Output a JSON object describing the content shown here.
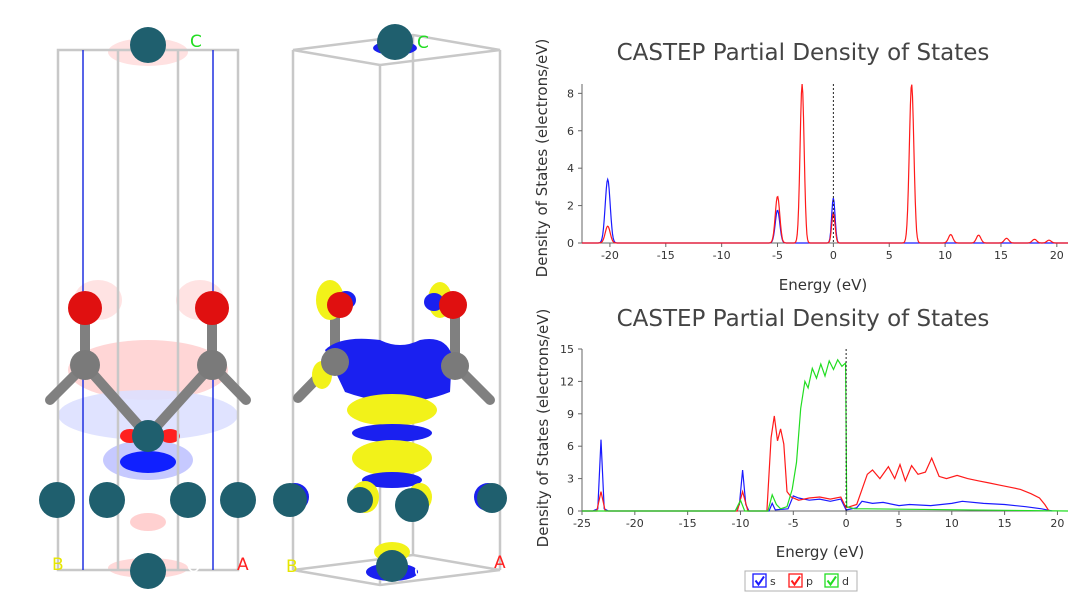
{
  "colors": {
    "s": "#1a1aff",
    "p": "#ff1a1a",
    "d": "#22dd22",
    "atom_metal": "#1f5f6e",
    "atom_c": "#808080",
    "atom_o": "#e01010",
    "cell_edge": "#c0c0c0",
    "charge_pos": "#1020ff",
    "charge_neg": "#ff2020",
    "charge_yellow": "#f2f219"
  },
  "structures": [
    {
      "axis_labels": {
        "a": "A",
        "b": "B",
        "c": "C",
        "center": "O"
      }
    },
    {
      "axis_labels": {
        "a": "A",
        "b": "B",
        "c": "C",
        "center": "O"
      }
    }
  ],
  "legend": {
    "items": [
      {
        "key": "s",
        "label": "s"
      },
      {
        "key": "p",
        "label": "p"
      },
      {
        "key": "d",
        "label": "d"
      }
    ]
  },
  "chart_data": [
    {
      "type": "line",
      "title": "CASTEP Partial  Density of States",
      "xlabel": "Energy (eV)",
      "ylabel": "Density of States (electrons/eV)",
      "xlim": [
        -22.5,
        21
      ],
      "ylim": [
        0,
        8.5
      ],
      "xticks": [
        -20,
        -15,
        -10,
        -5,
        0,
        5,
        10,
        15,
        20
      ],
      "yticks": [
        0,
        2,
        4,
        6,
        8
      ],
      "fermi_level": 0,
      "series": [
        {
          "name": "s",
          "color": "#1a1aff",
          "peaks": [
            [
              -20.2,
              3.4,
              0.22
            ],
            [
              -5.0,
              1.75,
              0.2
            ],
            [
              0.0,
              2.4,
              0.15
            ]
          ]
        },
        {
          "name": "p",
          "color": "#ff1a1a",
          "peaks": [
            [
              -20.2,
              0.9,
              0.22
            ],
            [
              -5.0,
              2.5,
              0.2
            ],
            [
              -2.8,
              8.5,
              0.18
            ],
            [
              0.0,
              1.6,
              0.15
            ],
            [
              7.0,
              8.5,
              0.2
            ],
            [
              10.5,
              0.45,
              0.2
            ],
            [
              13.0,
              0.42,
              0.2
            ],
            [
              15.5,
              0.25,
              0.2
            ],
            [
              18.0,
              0.2,
              0.2
            ],
            [
              19.3,
              0.15,
              0.2
            ]
          ]
        }
      ]
    },
    {
      "type": "line",
      "title": "CASTEP Partial  Density of States",
      "xlabel": "Energy (eV)",
      "ylabel": "Density of States (electrons/eV)",
      "xlim": [
        -25,
        21
      ],
      "ylim": [
        0,
        15
      ],
      "xticks": [
        -25,
        -20,
        -15,
        -10,
        -5,
        0,
        5,
        10,
        15,
        20
      ],
      "yticks": [
        0,
        3,
        6,
        9,
        12,
        15
      ],
      "fermi_level": 0,
      "series": [
        {
          "name": "s",
          "color": "#1a1aff",
          "points": [
            [
              -25,
              0
            ],
            [
              -24,
              0
            ],
            [
              -23.5,
              0.2
            ],
            [
              -23.2,
              6.6
            ],
            [
              -22.9,
              0.2
            ],
            [
              -22.5,
              0
            ],
            [
              -10.5,
              0
            ],
            [
              -10.1,
              0.6
            ],
            [
              -9.8,
              3.8
            ],
            [
              -9.5,
              0.6
            ],
            [
              -9.2,
              0
            ],
            [
              -7.3,
              0
            ],
            [
              -7,
              0.7
            ],
            [
              -6.7,
              0.1
            ],
            [
              -5.5,
              0.2
            ],
            [
              -5,
              1.4
            ],
            [
              -4.5,
              1.2
            ],
            [
              -3.5,
              1.0
            ],
            [
              -2.5,
              1.1
            ],
            [
              -1.5,
              0.9
            ],
            [
              -0.5,
              1.1
            ],
            [
              0,
              0.1
            ],
            [
              1,
              0.3
            ],
            [
              1.5,
              0.9
            ],
            [
              2.5,
              0.7
            ],
            [
              3.5,
              0.8
            ],
            [
              5,
              0.5
            ],
            [
              6,
              0.6
            ],
            [
              8,
              0.5
            ],
            [
              10,
              0.7
            ],
            [
              11,
              0.9
            ],
            [
              13,
              0.7
            ],
            [
              15,
              0.6
            ],
            [
              17,
              0.4
            ],
            [
              18.5,
              0.2
            ],
            [
              19.5,
              0
            ]
          ]
        },
        {
          "name": "p",
          "color": "#ff1a1a",
          "points": [
            [
              -25,
              0
            ],
            [
              -23.6,
              0
            ],
            [
              -23.2,
              1.8
            ],
            [
              -22.8,
              0
            ],
            [
              -10.3,
              0
            ],
            [
              -9.8,
              1.8
            ],
            [
              -9.3,
              0
            ],
            [
              -7.5,
              0
            ],
            [
              -7.1,
              6.8
            ],
            [
              -6.8,
              8.8
            ],
            [
              -6.5,
              6.5
            ],
            [
              -6.2,
              7.6
            ],
            [
              -5.9,
              6.2
            ],
            [
              -5.6,
              1.8
            ],
            [
              -5.2,
              1.3
            ],
            [
              -4.5,
              1.0
            ],
            [
              -3.5,
              1.2
            ],
            [
              -2.5,
              1.3
            ],
            [
              -1.5,
              1.1
            ],
            [
              -0.5,
              1.3
            ],
            [
              0,
              0.3
            ],
            [
              1,
              0.6
            ],
            [
              1.5,
              2.0
            ],
            [
              2,
              3.4
            ],
            [
              2.5,
              3.8
            ],
            [
              3.2,
              3.0
            ],
            [
              4,
              4.1
            ],
            [
              4.6,
              3.0
            ],
            [
              5.1,
              4.3
            ],
            [
              5.6,
              2.8
            ],
            [
              6.2,
              4.2
            ],
            [
              6.8,
              3.4
            ],
            [
              7.5,
              3.6
            ],
            [
              8.1,
              4.9
            ],
            [
              8.8,
              3.2
            ],
            [
              9.5,
              3.0
            ],
            [
              10.5,
              3.3
            ],
            [
              11.5,
              3.0
            ],
            [
              12.5,
              2.8
            ],
            [
              13.5,
              2.6
            ],
            [
              14.5,
              2.4
            ],
            [
              15.5,
              2.2
            ],
            [
              16.5,
              2.0
            ],
            [
              17.5,
              1.6
            ],
            [
              18.3,
              1.2
            ],
            [
              18.8,
              0.6
            ],
            [
              19.2,
              0
            ]
          ]
        },
        {
          "name": "d",
          "color": "#22dd22",
          "points": [
            [
              -25,
              0
            ],
            [
              -10.5,
              0
            ],
            [
              -10,
              1.0
            ],
            [
              -9.6,
              0
            ],
            [
              -7.4,
              0
            ],
            [
              -7,
              1.5
            ],
            [
              -6.6,
              0.6
            ],
            [
              -6.2,
              0.2
            ],
            [
              -5.6,
              0.4
            ],
            [
              -5.1,
              2.0
            ],
            [
              -4.7,
              4.5
            ],
            [
              -4.3,
              9.5
            ],
            [
              -3.9,
              12.0
            ],
            [
              -3.6,
              11.4
            ],
            [
              -3.2,
              13.2
            ],
            [
              -2.8,
              12.3
            ],
            [
              -2.4,
              13.6
            ],
            [
              -2.0,
              12.5
            ],
            [
              -1.6,
              13.9
            ],
            [
              -1.2,
              13.1
            ],
            [
              -0.8,
              14.0
            ],
            [
              -0.4,
              13.4
            ],
            [
              -0.05,
              13.7
            ],
            [
              0.05,
              0.4
            ],
            [
              0.8,
              0.2
            ],
            [
              2,
              0.2
            ],
            [
              21,
              0
            ]
          ]
        }
      ]
    }
  ]
}
